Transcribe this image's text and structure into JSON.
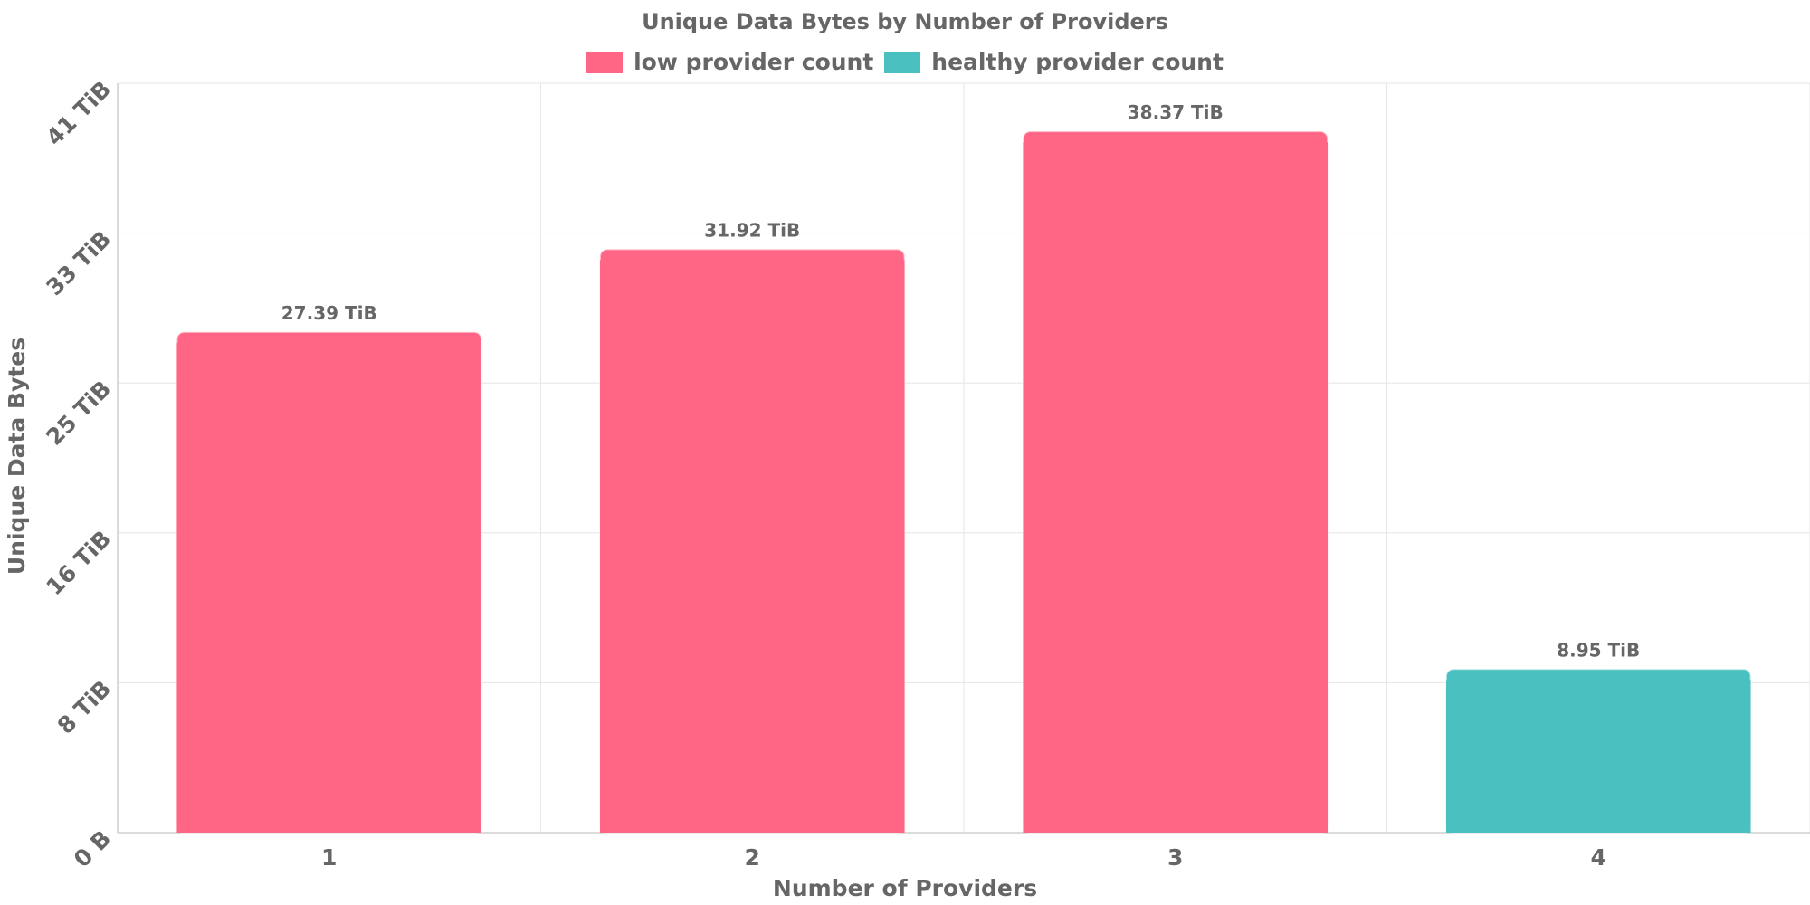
{
  "chart_data": {
    "type": "bar",
    "title": "Unique Data Bytes by Number of Providers",
    "xlabel": "Number of Providers",
    "ylabel": "Unique Data Bytes",
    "categories": [
      "1",
      "2",
      "3",
      "4"
    ],
    "values": [
      27.39,
      31.92,
      38.37,
      8.95
    ],
    "value_labels": [
      "27.39 TiB",
      "31.92 TiB",
      "38.37 TiB",
      "8.95 TiB"
    ],
    "bar_series": [
      "low provider count",
      "low provider count",
      "low provider count",
      "healthy provider count"
    ],
    "ylim": [
      0,
      41
    ],
    "y_ticks": [
      {
        "value": 0,
        "label": "0 B"
      },
      {
        "value": 8.2,
        "label": "8 TiB"
      },
      {
        "value": 16.4,
        "label": "16 TiB"
      },
      {
        "value": 24.6,
        "label": "25 TiB"
      },
      {
        "value": 32.8,
        "label": "33 TiB"
      },
      {
        "value": 41,
        "label": "41 TiB"
      }
    ],
    "legend": [
      {
        "name": "low provider count",
        "color": "#ff6584"
      },
      {
        "name": "healthy provider count",
        "color": "#4bc0c0"
      }
    ],
    "legend_position": "top-center",
    "grid": true
  }
}
